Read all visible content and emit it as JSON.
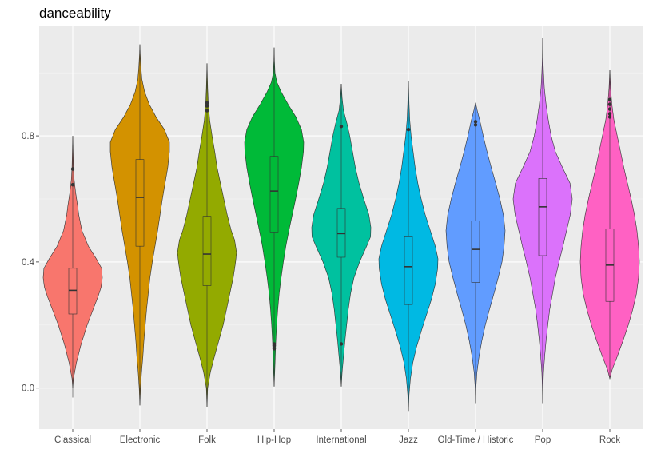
{
  "chart_data": {
    "type": "violin",
    "title": "danceability",
    "xlabel": "",
    "ylabel": "",
    "ylim": [
      -0.13,
      1.15
    ],
    "y_ticks": [
      0.0,
      0.4,
      0.8
    ],
    "y_tick_labels": [
      "0.0",
      "0.4",
      "0.8"
    ],
    "grid": true,
    "legend": "none",
    "panel_background": "#ebebeb",
    "categories": [
      "Classical",
      "Electronic",
      "Folk",
      "Hip-Hop",
      "International",
      "Jazz",
      "Old-Time / Historic",
      "Pop",
      "Rock"
    ],
    "colors": [
      "#f8766d",
      "#d39200",
      "#93aa00",
      "#00ba38",
      "#00c19f",
      "#00b9e3",
      "#619cff",
      "#db72fb",
      "#ff61c3"
    ],
    "series": [
      {
        "boxplot": {
          "min": -0.03,
          "q1": 0.235,
          "median": 0.31,
          "q3": 0.38,
          "max": 0.8
        },
        "outliers": [
          0.645,
          0.695
        ],
        "density": [
          [
            0.0,
            0.0
          ],
          [
            0.03,
            0.3
          ],
          [
            0.08,
            1.5
          ],
          [
            0.14,
            3.5
          ],
          [
            0.2,
            6.0
          ],
          [
            0.25,
            8.5
          ],
          [
            0.29,
            10.5
          ],
          [
            0.32,
            11.8
          ],
          [
            0.35,
            12.3
          ],
          [
            0.38,
            12.0
          ],
          [
            0.41,
            9.8
          ],
          [
            0.45,
            6.5
          ],
          [
            0.5,
            3.8
          ],
          [
            0.55,
            2.5
          ],
          [
            0.58,
            2.0
          ],
          [
            0.62,
            1.2
          ],
          [
            0.66,
            0.6
          ],
          [
            0.7,
            0.3
          ],
          [
            0.75,
            0.15
          ],
          [
            0.8,
            0.0
          ]
        ]
      },
      {
        "boxplot": {
          "min": -0.055,
          "q1": 0.45,
          "median": 0.605,
          "q3": 0.725,
          "max": 1.09
        },
        "outliers": [],
        "density": [
          [
            -0.055,
            0.0
          ],
          [
            0.0,
            0.2
          ],
          [
            0.05,
            0.5
          ],
          [
            0.1,
            0.9
          ],
          [
            0.15,
            1.2
          ],
          [
            0.2,
            1.6
          ],
          [
            0.25,
            2.0
          ],
          [
            0.3,
            2.5
          ],
          [
            0.35,
            3.0
          ],
          [
            0.4,
            3.7
          ],
          [
            0.45,
            4.5
          ],
          [
            0.5,
            5.3
          ],
          [
            0.55,
            6.0
          ],
          [
            0.6,
            6.7
          ],
          [
            0.65,
            7.5
          ],
          [
            0.7,
            8.3
          ],
          [
            0.75,
            8.8
          ],
          [
            0.78,
            8.8
          ],
          [
            0.82,
            7.3
          ],
          [
            0.86,
            4.8
          ],
          [
            0.9,
            2.8
          ],
          [
            0.94,
            1.4
          ],
          [
            0.98,
            0.6
          ],
          [
            1.02,
            0.3
          ],
          [
            1.06,
            0.1
          ],
          [
            1.09,
            0.0
          ]
        ]
      },
      {
        "boxplot": {
          "min": -0.06,
          "q1": 0.325,
          "median": 0.425,
          "q3": 0.545,
          "max": 1.03
        },
        "outliers": [
          0.88,
          0.895,
          0.905
        ],
        "density": [
          [
            -0.06,
            0.0
          ],
          [
            0.0,
            0.2
          ],
          [
            0.05,
            1.0
          ],
          [
            0.1,
            2.2
          ],
          [
            0.15,
            3.5
          ],
          [
            0.2,
            4.8
          ],
          [
            0.25,
            5.8
          ],
          [
            0.3,
            6.8
          ],
          [
            0.35,
            7.8
          ],
          [
            0.4,
            8.5
          ],
          [
            0.43,
            8.8
          ],
          [
            0.47,
            8.2
          ],
          [
            0.5,
            7.2
          ],
          [
            0.55,
            6.0
          ],
          [
            0.6,
            5.0
          ],
          [
            0.65,
            4.0
          ],
          [
            0.7,
            3.0
          ],
          [
            0.75,
            2.3
          ],
          [
            0.8,
            1.5
          ],
          [
            0.85,
            0.8
          ],
          [
            0.9,
            0.4
          ],
          [
            0.95,
            0.2
          ],
          [
            1.03,
            0.0
          ]
        ]
      },
      {
        "boxplot": {
          "min": 0.005,
          "q1": 0.495,
          "median": 0.625,
          "q3": 0.735,
          "max": 1.08
        },
        "outliers": [
          0.125,
          0.135,
          0.14
        ],
        "density": [
          [
            0.005,
            0.0
          ],
          [
            0.05,
            0.2
          ],
          [
            0.1,
            0.4
          ],
          [
            0.15,
            0.6
          ],
          [
            0.2,
            0.9
          ],
          [
            0.25,
            1.3
          ],
          [
            0.3,
            1.8
          ],
          [
            0.35,
            2.5
          ],
          [
            0.4,
            3.3
          ],
          [
            0.45,
            4.2
          ],
          [
            0.5,
            5.3
          ],
          [
            0.55,
            6.5
          ],
          [
            0.6,
            7.7
          ],
          [
            0.65,
            8.8
          ],
          [
            0.7,
            9.8
          ],
          [
            0.75,
            10.5
          ],
          [
            0.78,
            10.6
          ],
          [
            0.82,
            9.8
          ],
          [
            0.86,
            7.8
          ],
          [
            0.9,
            5.0
          ],
          [
            0.94,
            2.5
          ],
          [
            0.97,
            1.0
          ],
          [
            1.0,
            0.3
          ],
          [
            1.04,
            0.1
          ],
          [
            1.08,
            0.0
          ]
        ]
      },
      {
        "boxplot": {
          "min": 0.005,
          "q1": 0.415,
          "median": 0.49,
          "q3": 0.57,
          "max": 0.965
        },
        "outliers": [
          0.14,
          0.83
        ],
        "density": [
          [
            0.005,
            0.0
          ],
          [
            0.05,
            0.3
          ],
          [
            0.1,
            0.8
          ],
          [
            0.15,
            1.3
          ],
          [
            0.2,
            1.9
          ],
          [
            0.25,
            2.5
          ],
          [
            0.3,
            3.3
          ],
          [
            0.35,
            4.5
          ],
          [
            0.4,
            6.5
          ],
          [
            0.45,
            9.0
          ],
          [
            0.48,
            10.4
          ],
          [
            0.51,
            10.5
          ],
          [
            0.55,
            9.8
          ],
          [
            0.6,
            8.0
          ],
          [
            0.65,
            6.3
          ],
          [
            0.7,
            5.0
          ],
          [
            0.75,
            4.0
          ],
          [
            0.8,
            3.0
          ],
          [
            0.84,
            2.0
          ],
          [
            0.88,
            0.8
          ],
          [
            0.92,
            0.3
          ],
          [
            0.965,
            0.0
          ]
        ]
      },
      {
        "boxplot": {
          "min": -0.075,
          "q1": 0.265,
          "median": 0.385,
          "q3": 0.48,
          "max": 0.975
        },
        "outliers": [
          0.82
        ],
        "density": [
          [
            -0.075,
            0.0
          ],
          [
            -0.02,
            0.2
          ],
          [
            0.03,
            0.6
          ],
          [
            0.08,
            1.3
          ],
          [
            0.13,
            2.4
          ],
          [
            0.18,
            3.8
          ],
          [
            0.23,
            5.3
          ],
          [
            0.28,
            6.8
          ],
          [
            0.33,
            8.0
          ],
          [
            0.38,
            8.7
          ],
          [
            0.41,
            8.8
          ],
          [
            0.45,
            8.0
          ],
          [
            0.5,
            6.5
          ],
          [
            0.55,
            5.0
          ],
          [
            0.6,
            3.8
          ],
          [
            0.65,
            2.8
          ],
          [
            0.7,
            2.0
          ],
          [
            0.75,
            1.4
          ],
          [
            0.8,
            0.8
          ],
          [
            0.85,
            0.4
          ],
          [
            0.9,
            0.2
          ],
          [
            0.975,
            0.0
          ]
        ]
      },
      {
        "boxplot": {
          "min": -0.05,
          "q1": 0.335,
          "median": 0.44,
          "q3": 0.53,
          "max": 0.905
        },
        "outliers": [
          0.835,
          0.845
        ],
        "density": [
          [
            -0.05,
            0.0
          ],
          [
            0.0,
            0.1
          ],
          [
            0.05,
            0.4
          ],
          [
            0.1,
            1.0
          ],
          [
            0.15,
            1.8
          ],
          [
            0.2,
            2.8
          ],
          [
            0.25,
            4.0
          ],
          [
            0.3,
            5.3
          ],
          [
            0.35,
            6.5
          ],
          [
            0.4,
            7.6
          ],
          [
            0.45,
            8.2
          ],
          [
            0.5,
            8.5
          ],
          [
            0.55,
            8.0
          ],
          [
            0.6,
            7.0
          ],
          [
            0.65,
            5.8
          ],
          [
            0.7,
            4.5
          ],
          [
            0.75,
            3.3
          ],
          [
            0.8,
            2.2
          ],
          [
            0.85,
            1.2
          ],
          [
            0.88,
            0.5
          ],
          [
            0.905,
            0.0
          ]
        ]
      },
      {
        "boxplot": {
          "min": -0.05,
          "q1": 0.42,
          "median": 0.575,
          "q3": 0.665,
          "max": 1.11
        },
        "outliers": [],
        "density": [
          [
            -0.05,
            0.0
          ],
          [
            0.0,
            0.1
          ],
          [
            0.05,
            0.3
          ],
          [
            0.1,
            0.7
          ],
          [
            0.15,
            1.2
          ],
          [
            0.2,
            1.8
          ],
          [
            0.25,
            2.5
          ],
          [
            0.3,
            3.5
          ],
          [
            0.35,
            4.5
          ],
          [
            0.4,
            5.8
          ],
          [
            0.45,
            7.2
          ],
          [
            0.5,
            8.5
          ],
          [
            0.55,
            9.8
          ],
          [
            0.6,
            10.5
          ],
          [
            0.65,
            9.7
          ],
          [
            0.7,
            7.0
          ],
          [
            0.75,
            4.5
          ],
          [
            0.8,
            3.0
          ],
          [
            0.85,
            2.0
          ],
          [
            0.9,
            1.2
          ],
          [
            0.95,
            0.6
          ],
          [
            1.0,
            0.3
          ],
          [
            1.05,
            0.1
          ],
          [
            1.11,
            0.0
          ]
        ]
      },
      {
        "boxplot": {
          "min": 0.03,
          "q1": 0.275,
          "median": 0.39,
          "q3": 0.505,
          "max": 1.01
        },
        "outliers": [
          0.86,
          0.87,
          0.885,
          0.9,
          0.915
        ],
        "density": [
          [
            0.03,
            0.0
          ],
          [
            0.06,
            0.6
          ],
          [
            0.1,
            1.8
          ],
          [
            0.15,
            3.2
          ],
          [
            0.2,
            4.5
          ],
          [
            0.25,
            5.6
          ],
          [
            0.3,
            6.5
          ],
          [
            0.35,
            7.0
          ],
          [
            0.4,
            7.2
          ],
          [
            0.45,
            7.0
          ],
          [
            0.5,
            6.6
          ],
          [
            0.55,
            6.0
          ],
          [
            0.6,
            5.2
          ],
          [
            0.65,
            4.3
          ],
          [
            0.7,
            3.4
          ],
          [
            0.75,
            2.6
          ],
          [
            0.8,
            1.8
          ],
          [
            0.85,
            1.0
          ],
          [
            0.9,
            0.5
          ],
          [
            0.95,
            0.2
          ],
          [
            1.01,
            0.0
          ]
        ]
      }
    ]
  }
}
